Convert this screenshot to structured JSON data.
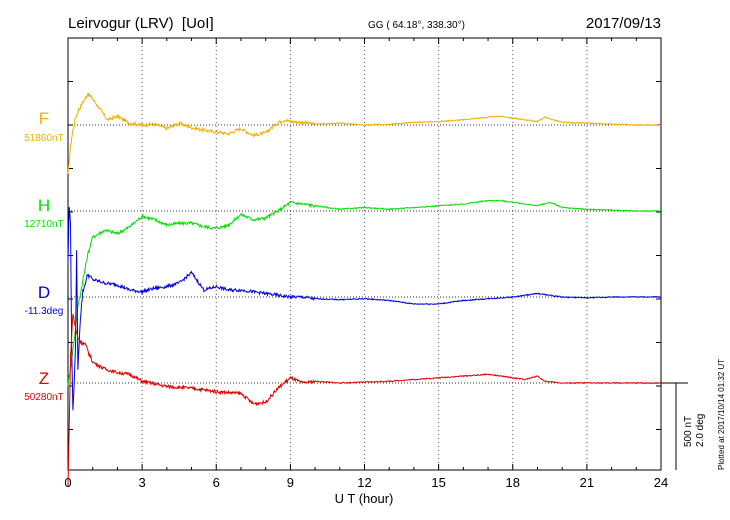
{
  "header": {
    "station": "Leirvogur (LRV)  [UoI]",
    "coordinates": "GG ( 64.18°, 338.30°)",
    "date": "2017/09/13"
  },
  "footer": {
    "plotted": "Plotted at 2017/10/14 01:32 UT",
    "scale_nt": "500 nT",
    "scale_deg": "2.0 deg"
  },
  "chart_data": {
    "type": "line",
    "xlabel": "U T (hour)",
    "xlim": [
      0,
      24
    ],
    "xticks": [
      0,
      3,
      6,
      9,
      12,
      15,
      18,
      21,
      24
    ],
    "xtick_labels": [
      "0",
      "3",
      "6",
      "9",
      "12",
      "15",
      "18",
      "21",
      "24"
    ],
    "grid": true,
    "scale_bar": {
      "value": 500,
      "unit": "nT",
      "alt_value": 2.0,
      "alt_unit": "deg"
    },
    "series": [
      {
        "name": "F",
        "baseline_label": "51860nT",
        "baseline": 51860,
        "color": "#f0b000",
        "x": [
          0,
          0.1,
          0.2,
          0.3,
          0.4,
          0.6,
          0.8,
          1.0,
          1.3,
          1.6,
          2.0,
          2.5,
          3.0,
          3.5,
          4.0,
          4.5,
          5.0,
          5.5,
          6.0,
          6.5,
          7.0,
          7.5,
          8.0,
          8.5,
          8.8,
          9.0,
          9.5,
          10,
          11,
          12,
          13,
          14,
          15,
          16,
          17,
          17.5,
          18,
          18.5,
          19,
          19.3,
          20,
          21,
          22,
          23,
          24
        ],
        "y": [
          -290,
          -120,
          -30,
          40,
          80,
          130,
          180,
          150,
          90,
          30,
          50,
          10,
          0,
          5,
          -20,
          10,
          -15,
          -30,
          -40,
          -50,
          -20,
          -60,
          -45,
          15,
          30,
          20,
          15,
          5,
          10,
          0,
          5,
          15,
          20,
          30,
          45,
          50,
          40,
          30,
          20,
          45,
          15,
          10,
          5,
          0,
          0
        ]
      },
      {
        "name": "H",
        "baseline_label": "12710nT",
        "baseline": 12710,
        "color": "#00e000",
        "x": [
          0,
          0.2,
          0.4,
          0.6,
          0.8,
          1.0,
          1.5,
          2.0,
          2.5,
          3.0,
          3.5,
          4.0,
          4.5,
          5.0,
          5.5,
          6.0,
          6.5,
          7.0,
          7.5,
          8.0,
          8.5,
          9.0,
          9.5,
          10,
          11,
          12,
          13,
          14,
          15,
          16,
          17,
          17.5,
          18,
          18.5,
          19,
          19.5,
          20,
          21,
          22,
          23,
          24
        ],
        "y": [
          -1000,
          -800,
          -550,
          -400,
          -250,
          -150,
          -110,
          -130,
          -90,
          -30,
          -50,
          -80,
          -70,
          -70,
          -90,
          -100,
          -80,
          -20,
          -50,
          -40,
          0,
          50,
          40,
          30,
          10,
          20,
          10,
          20,
          30,
          40,
          60,
          60,
          50,
          40,
          30,
          50,
          20,
          10,
          5,
          0,
          0
        ]
      },
      {
        "name": "D",
        "baseline_label": "-11.3deg",
        "baseline": -11.3,
        "color": "#0000e0",
        "x": [
          0,
          0.05,
          0.1,
          0.15,
          0.2,
          0.3,
          0.35,
          0.4,
          0.5,
          0.6,
          0.7,
          0.8,
          1.0,
          1.5,
          2.0,
          2.5,
          3.0,
          3.5,
          4.0,
          4.5,
          5.0,
          5.5,
          6.0,
          6.5,
          7.0,
          7.5,
          8.0,
          8.5,
          9.0,
          9.5,
          10,
          11,
          12,
          13,
          14,
          15,
          16,
          17,
          18,
          19,
          20,
          21,
          22,
          23,
          24
        ],
        "y": [
          200,
          520,
          420,
          -300,
          -650,
          -320,
          260,
          -420,
          -120,
          30,
          80,
          130,
          100,
          80,
          70,
          40,
          30,
          50,
          60,
          80,
          140,
          40,
          60,
          40,
          40,
          30,
          20,
          10,
          0,
          0,
          -10,
          -15,
          -10,
          -20,
          -40,
          -40,
          -20,
          -10,
          0,
          20,
          0,
          -5,
          0,
          0,
          0
        ]
      },
      {
        "name": "Z",
        "baseline_label": "50280nT",
        "baseline": 50280,
        "color": "#e00000",
        "x": [
          0,
          0.05,
          0.1,
          0.2,
          0.3,
          0.4,
          0.5,
          0.7,
          1.0,
          1.5,
          2.0,
          2.5,
          3.0,
          4.0,
          5.0,
          6.0,
          7.0,
          7.5,
          8.0,
          8.5,
          9.0,
          9.5,
          10,
          11,
          12,
          13,
          14,
          15,
          16,
          17,
          17.5,
          18,
          18.5,
          19,
          19.3,
          20,
          21,
          22,
          23,
          24
        ],
        "y": [
          -600,
          -250,
          150,
          400,
          320,
          260,
          240,
          220,
          120,
          80,
          60,
          50,
          10,
          -20,
          -30,
          -50,
          -60,
          -120,
          -110,
          -30,
          30,
          0,
          10,
          0,
          5,
          10,
          20,
          30,
          40,
          50,
          40,
          30,
          20,
          40,
          10,
          0,
          0,
          0,
          0,
          0
        ]
      }
    ]
  }
}
